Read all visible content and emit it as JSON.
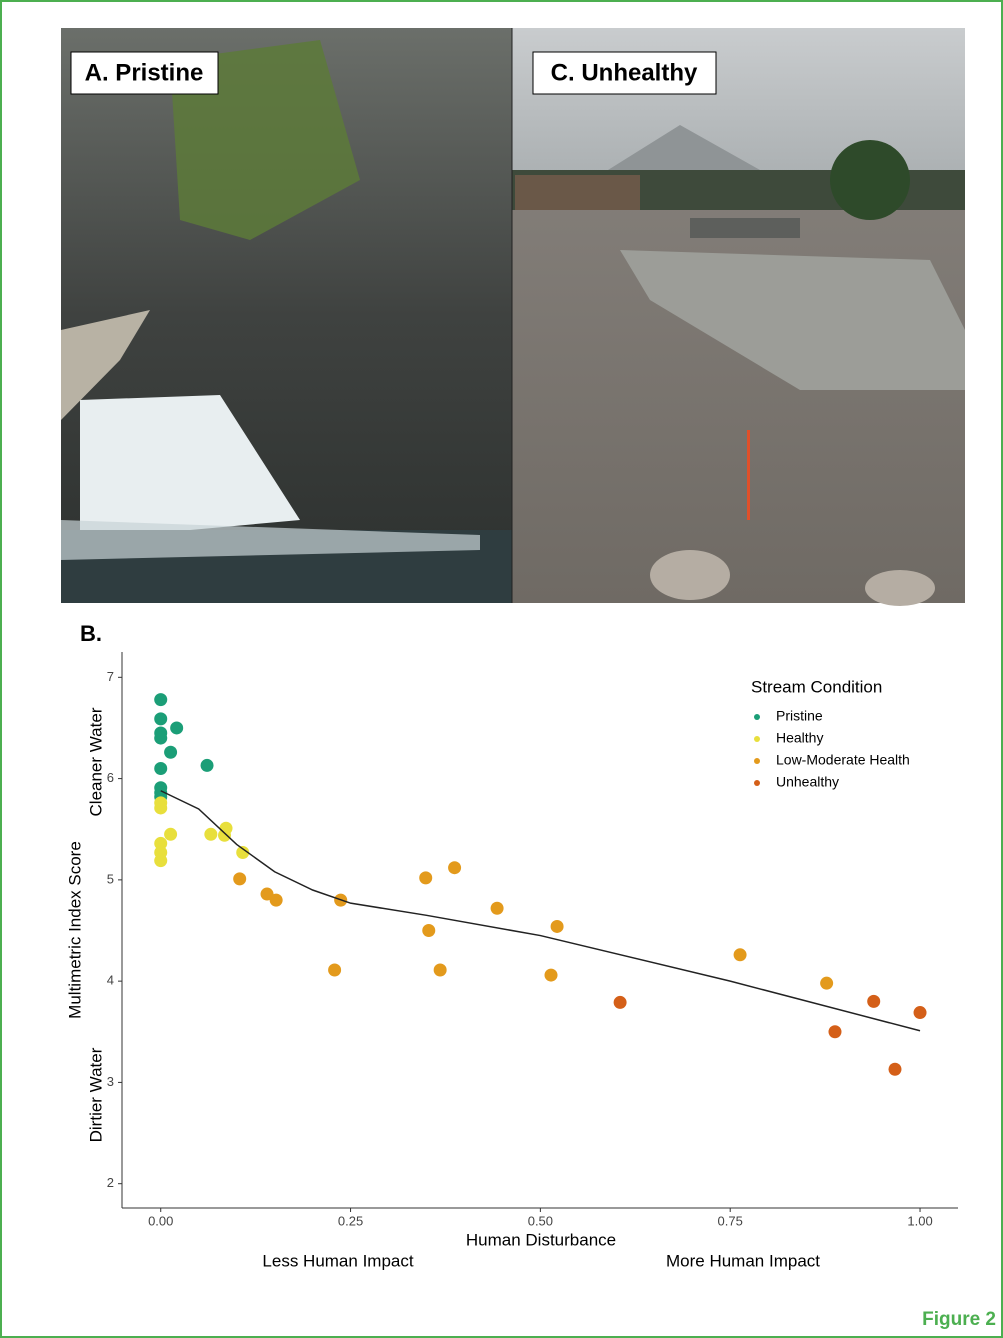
{
  "panel_a_label": "A. Pristine",
  "panel_c_label": "C. Unhealthy",
  "panel_b_label": "B.",
  "figure_label": "Figure 2",
  "chart_data": {
    "type": "scatter",
    "x_label": "Human Disturbance",
    "y_label": "Multimetric Index Score",
    "annotations": {
      "y_top": "Cleaner Water",
      "y_bottom": "Dirtier Water",
      "x_left": "Less Human Impact",
      "x_right": "More Human Impact"
    },
    "legend_title": "Stream Condition",
    "legend_position": "top-right",
    "grid": false,
    "xlim": [
      -0.051,
      1.05
    ],
    "ylim": [
      1.76,
      7.25
    ],
    "xticks": [
      {
        "value": 0,
        "label": "0.00"
      },
      {
        "value": 0.25,
        "label": "0.25"
      },
      {
        "value": 0.5,
        "label": "0.50"
      },
      {
        "value": 0.75,
        "label": "0.75"
      },
      {
        "value": 1,
        "label": "1.00"
      }
    ],
    "yticks": [
      2,
      3,
      4,
      5,
      6,
      7
    ],
    "series": [
      {
        "name": "Pristine",
        "color": "#1b9e77",
        "x": [
          0,
          0,
          0,
          0,
          0.021,
          0.013,
          0,
          0.061,
          0,
          0,
          0
        ],
        "values": [
          6.78,
          6.59,
          6.45,
          6.4,
          6.5,
          6.26,
          6.1,
          6.13,
          5.91,
          5.82,
          5.86
        ]
      },
      {
        "name": "Healthy",
        "color": "#e8df3c",
        "x": [
          0,
          0,
          0.013,
          0,
          0,
          0,
          0.066,
          0.086,
          0.084,
          0.108
        ],
        "values": [
          5.71,
          5.76,
          5.45,
          5.36,
          5.27,
          5.19,
          5.45,
          5.51,
          5.44,
          5.27
        ]
      },
      {
        "name": "Low-Moderate Health",
        "color": "#e39a1c",
        "x": [
          0.104,
          0.14,
          0.152,
          0.237,
          0.229,
          0.349,
          0.387,
          0.443,
          0.353,
          0.368,
          0.522,
          0.514,
          0.763,
          0.877
        ],
        "values": [
          5.01,
          4.86,
          4.8,
          4.8,
          4.11,
          5.02,
          5.12,
          4.72,
          4.5,
          4.11,
          4.54,
          4.06,
          4.26,
          3.98
        ]
      },
      {
        "name": "Unhealthy",
        "color": "#d45f18",
        "x": [
          0.605,
          0.888,
          0.939,
          0.967,
          1.0
        ],
        "values": [
          3.79,
          3.5,
          3.8,
          3.13,
          3.69
        ]
      }
    ],
    "trend": {
      "color": "#222222",
      "x": [
        0,
        0.05,
        0.1,
        0.15,
        0.2,
        0.25,
        0.35,
        0.5,
        0.75,
        1.0
      ],
      "values": [
        5.88,
        5.7,
        5.35,
        5.08,
        4.9,
        4.77,
        4.65,
        4.45,
        4.0,
        3.51
      ]
    }
  }
}
